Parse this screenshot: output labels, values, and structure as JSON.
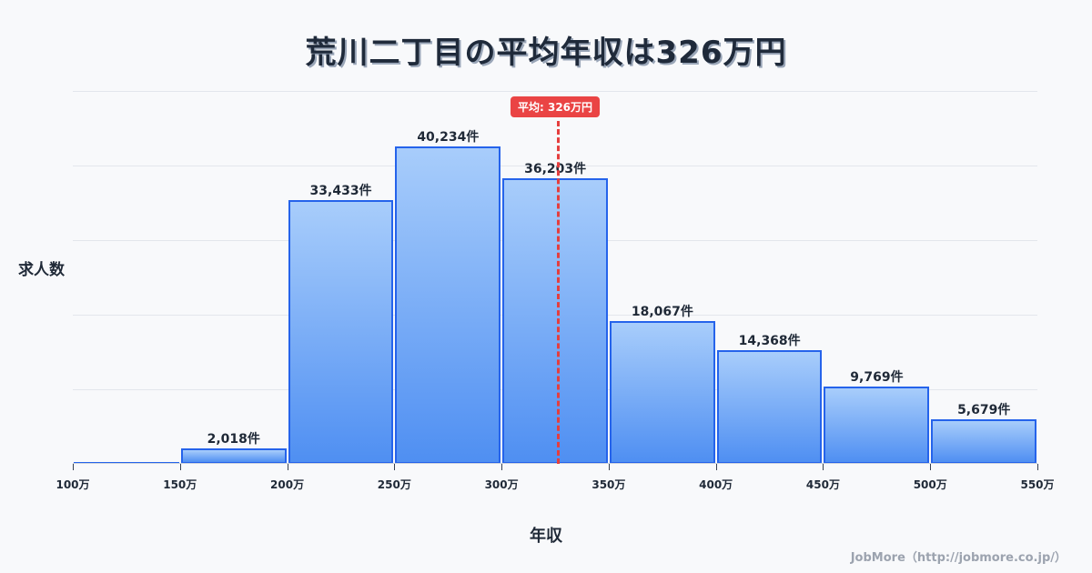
{
  "title": "荒川二丁目の平均年収は326万円",
  "y_axis_label": "求人数",
  "x_axis_label": "年収",
  "mean_badge": "平均: 326万円",
  "credit": "JobMore（http://jobmore.co.jp/）",
  "colors": {
    "bar_fill_top": "#a8cdfb",
    "bar_fill_bottom": "#4f8ff2",
    "bar_border": "#2563eb",
    "mean_line": "#e53e3e"
  },
  "bars": [
    {
      "range": "100-150万",
      "value": 0,
      "label": ""
    },
    {
      "range": "150-200万",
      "value": 2018,
      "label": "2,018件"
    },
    {
      "range": "200-250万",
      "value": 33433,
      "label": "33,433件"
    },
    {
      "range": "250-300万",
      "value": 40234,
      "label": "40,234件"
    },
    {
      "range": "300-350万",
      "value": 36203,
      "label": "36,203件"
    },
    {
      "range": "350-400万",
      "value": 18067,
      "label": "18,067件"
    },
    {
      "range": "400-450万",
      "value": 14368,
      "label": "14,368件"
    },
    {
      "range": "450-500万",
      "value": 9769,
      "label": "9,769件"
    },
    {
      "range": "500-550万",
      "value": 5679,
      "label": "5,679件"
    }
  ],
  "x_ticks": [
    "100万",
    "150万",
    "200万",
    "250万",
    "300万",
    "350万",
    "400万",
    "450万",
    "500万",
    "550万"
  ],
  "chart_data": {
    "type": "bar",
    "title": "荒川二丁目の平均年収は326万円",
    "xlabel": "年収",
    "ylabel": "求人数",
    "categories": [
      "100-150万",
      "150-200万",
      "200-250万",
      "250-300万",
      "300-350万",
      "350-400万",
      "400-450万",
      "450-500万",
      "500-550万"
    ],
    "values": [
      0,
      2018,
      33433,
      40234,
      36203,
      18067,
      14368,
      9769,
      5679
    ],
    "x_tick_labels": [
      "100万",
      "150万",
      "200万",
      "250万",
      "300万",
      "350万",
      "400万",
      "450万",
      "500万",
      "550万"
    ],
    "ylim": [
      0,
      47280
    ],
    "grid": true,
    "annotations": [
      {
        "type": "vline",
        "x": 326,
        "label": "平均: 326万円",
        "style": "dashed",
        "color": "#e53e3e"
      }
    ],
    "legend": null
  }
}
